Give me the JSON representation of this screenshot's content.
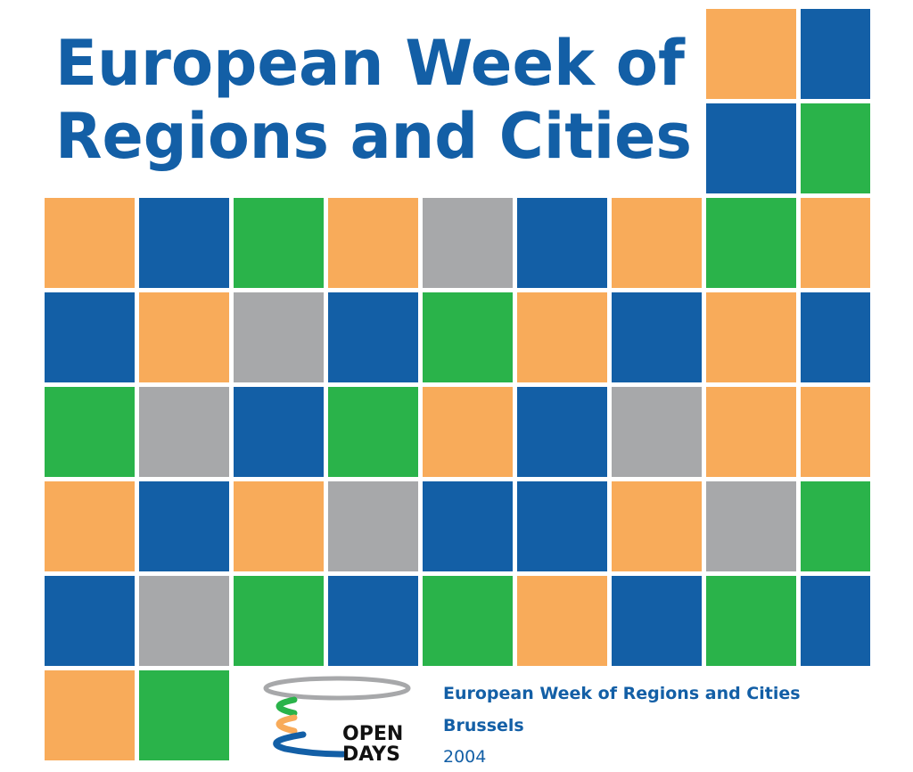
{
  "title": {
    "lines": [
      "European Week of",
      "Regions and Cities"
    ]
  },
  "logo": {
    "lines": [
      "OPEN",
      "DAYS"
    ]
  },
  "footer": {
    "event": "European Week of Regions and Cities",
    "city": "Brussels",
    "year": "2004"
  }
}
